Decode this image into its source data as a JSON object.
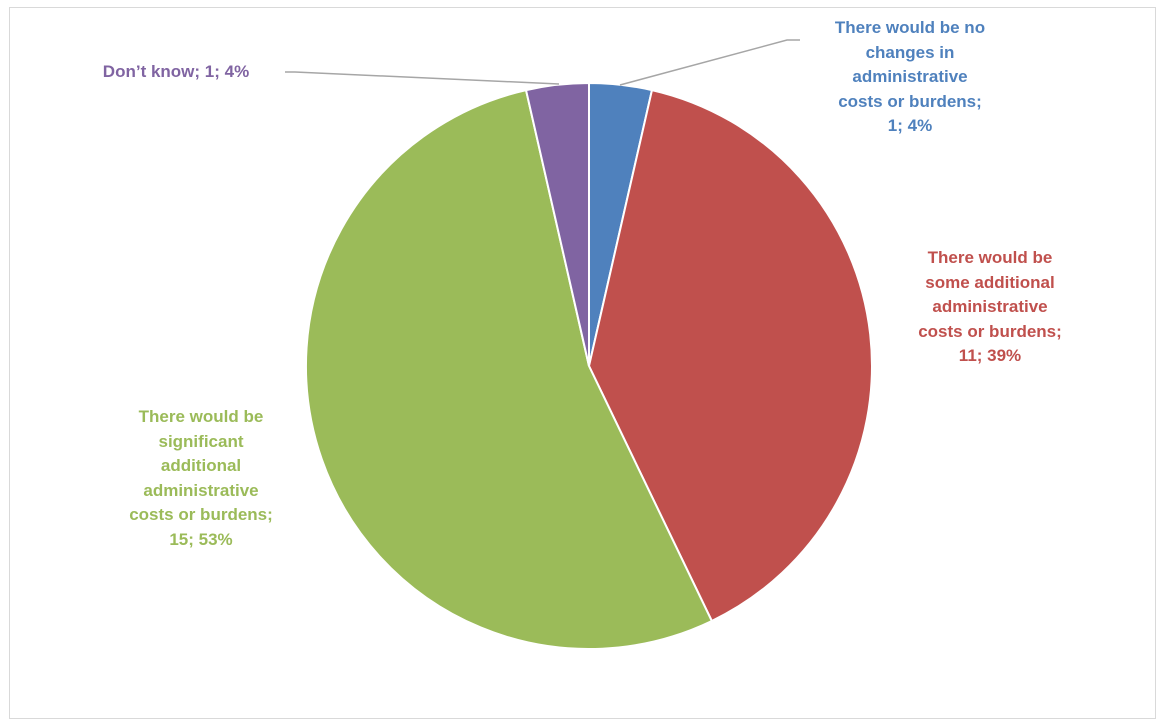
{
  "chart_data": {
    "type": "pie",
    "title": "",
    "legend": "none",
    "slices": [
      {
        "category": "There would be no changes in administrative costs or burdens",
        "value": 1,
        "percent": "4%",
        "color": "#4f81bd",
        "label_lines": [
          "There would be no",
          "changes in",
          "administrative",
          "costs or burdens;",
          "1; 4%"
        ]
      },
      {
        "category": "There would be some additional administrative costs or burdens",
        "value": 11,
        "percent": "39%",
        "color": "#c0504d",
        "label_lines": [
          "There would be",
          "some additional",
          "administrative",
          "costs or burdens;",
          "11; 39%"
        ]
      },
      {
        "category": "There would be significant additional administrative costs or burdens",
        "value": 15,
        "percent": "53%",
        "color": "#9bbb59",
        "label_lines": [
          "There would be",
          "significant",
          "additional",
          "administrative",
          "costs or burdens;",
          "15; 53%"
        ]
      },
      {
        "category": "Don’t know",
        "value": 1,
        "percent": "4%",
        "color": "#8064a2",
        "label_lines": [
          "Don’t know; 1; 4%"
        ]
      }
    ]
  }
}
